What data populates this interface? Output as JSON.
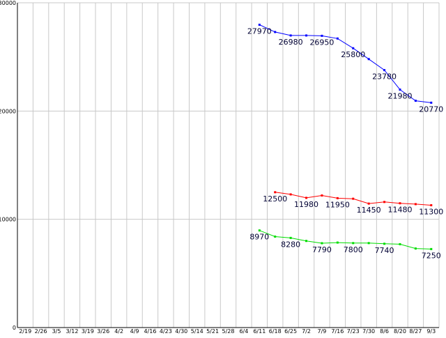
{
  "chart_data": {
    "type": "line",
    "categories": [
      "2/19",
      "2/26",
      "3/5",
      "3/12",
      "3/19",
      "3/26",
      "4/2",
      "4/9",
      "4/16",
      "4/23",
      "4/30",
      "5/14",
      "5/21",
      "5/28",
      "6/4",
      "6/11",
      "6/18",
      "6/25",
      "7/2",
      "7/9",
      "7/16",
      "7/23",
      "7/30",
      "8/6",
      "8/20",
      "8/27",
      "9/3"
    ],
    "ylim": [
      0,
      30000
    ],
    "yticks": [
      0,
      10000,
      20000,
      30000
    ],
    "ytick_labels": [
      "0",
      "10000",
      "20000",
      "30000"
    ],
    "grid": true,
    "series": [
      {
        "color": "#0000ff",
        "values": [
          null,
          null,
          null,
          null,
          null,
          null,
          null,
          null,
          null,
          null,
          null,
          null,
          null,
          null,
          null,
          27970,
          27300,
          26980,
          26980,
          26950,
          26700,
          25800,
          24800,
          23780,
          21980,
          20950,
          20770
        ],
        "data_labels": [
          {
            "index": 15,
            "text": "27970"
          },
          {
            "index": 17,
            "text": "26980"
          },
          {
            "index": 19,
            "text": "26950"
          },
          {
            "index": 21,
            "text": "25800"
          },
          {
            "index": 23,
            "text": "23780"
          },
          {
            "index": 24,
            "text": "21980"
          },
          {
            "index": 26,
            "text": "20770"
          }
        ]
      },
      {
        "color": "#ff0000",
        "values": [
          null,
          null,
          null,
          null,
          null,
          null,
          null,
          null,
          null,
          null,
          null,
          null,
          null,
          null,
          null,
          null,
          12500,
          12300,
          11980,
          12200,
          11950,
          11900,
          11450,
          11600,
          11480,
          11400,
          11300
        ],
        "data_labels": [
          {
            "index": 16,
            "text": "12500"
          },
          {
            "index": 18,
            "text": "11980"
          },
          {
            "index": 20,
            "text": "11950"
          },
          {
            "index": 22,
            "text": "11450"
          },
          {
            "index": 24,
            "text": "11480"
          },
          {
            "index": 26,
            "text": "11300"
          }
        ]
      },
      {
        "color": "#00dd00",
        "values": [
          null,
          null,
          null,
          null,
          null,
          null,
          null,
          null,
          null,
          null,
          null,
          null,
          null,
          null,
          null,
          8970,
          8400,
          8280,
          8000,
          7790,
          7850,
          7800,
          7800,
          7740,
          7700,
          7300,
          7250
        ],
        "data_labels": [
          {
            "index": 15,
            "text": "8970"
          },
          {
            "index": 17,
            "text": "8280"
          },
          {
            "index": 19,
            "text": "7790"
          },
          {
            "index": 21,
            "text": "7800"
          },
          {
            "index": 23,
            "text": "7740"
          },
          {
            "index": 26,
            "text": "7250"
          }
        ]
      }
    ]
  }
}
